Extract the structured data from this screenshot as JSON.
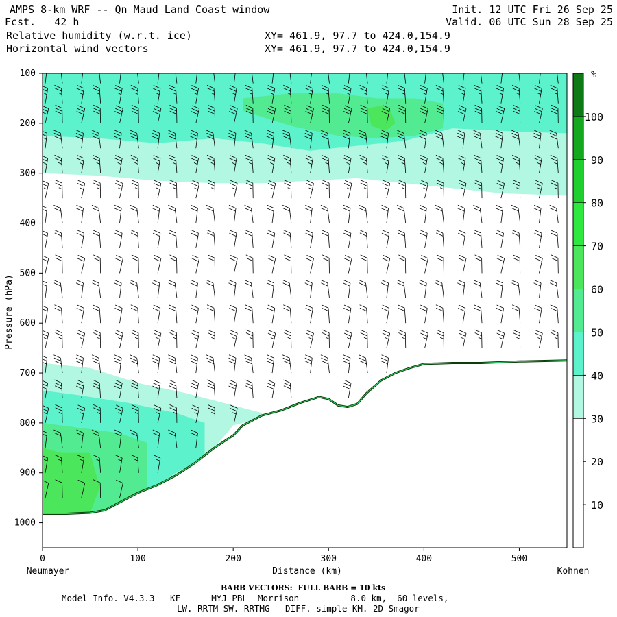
{
  "header": {
    "title": "AMPS 8-km WRF -- Qn Maud Land Coast window",
    "forecast": "Fcst.   42 h",
    "init": "Init. 12 UTC Fri 26 Sep 25",
    "valid": "Valid. 06 UTC Sun 28 Sep 25",
    "field1": "Relative humidity (w.r.t. ice)",
    "field2": "Horizontal wind vectors",
    "xy1": "XY= 461.9, 97.7 to 424.0,154.9",
    "xy2": "XY= 461.9, 97.7 to 424.0,154.9"
  },
  "footer": {
    "barb_note": "BARB VECTORS:  FULL BARB = 10 kts",
    "model_line1": "Model Info. V4.3.3   KF      MYJ PBL  Morrison          8.0 km,  60 levels,",
    "model_line2": "LW. RRTM SW. RRTMG   DIFF. simple KM. 2D Smagor"
  },
  "chart_data": {
    "type": "heatmap",
    "title": "Relative humidity (w.r.t. ice) cross-section with horizontal wind barbs",
    "xlabel": "Distance (km)",
    "ylabel": "Pressure (hPa)",
    "xlim": [
      0,
      550
    ],
    "ylim": [
      1050,
      100
    ],
    "x_ticks": [
      0,
      100,
      200,
      300,
      400,
      500
    ],
    "y_ticks": [
      100,
      200,
      300,
      400,
      500,
      600,
      700,
      800,
      900,
      1000
    ],
    "x_start_label": "Neumayer",
    "x_end_label": "Kohnen",
    "colorbar": {
      "unit": "%",
      "ticks": [
        10,
        20,
        30,
        40,
        50,
        60,
        70,
        80,
        90,
        100
      ],
      "levels": [
        0,
        30,
        40,
        50,
        60,
        70,
        80,
        90,
        100,
        110
      ],
      "colors": [
        "#ffffff",
        "#b2f7e2",
        "#5cf2cc",
        "#53eb92",
        "#4be65c",
        "#2ee840",
        "#1fcf2e",
        "#14a81e",
        "#0e7a16",
        "#4a6e14"
      ]
    },
    "terrain": {
      "distance_km": [
        0,
        25,
        50,
        65,
        80,
        100,
        120,
        140,
        160,
        180,
        200,
        210,
        230,
        250,
        270,
        290,
        300,
        310,
        320,
        330,
        340,
        355,
        370,
        385,
        400,
        430,
        460,
        500,
        550
      ],
      "pressure_hpa": [
        982,
        982,
        980,
        975,
        960,
        940,
        925,
        905,
        880,
        850,
        825,
        805,
        785,
        775,
        760,
        748,
        752,
        765,
        768,
        762,
        740,
        715,
        700,
        690,
        682,
        680,
        680,
        677,
        675
      ]
    },
    "rh_regions": [
      {
        "level": 30,
        "x": [
          0,
          60,
          120,
          180,
          230,
          280,
          330,
          380,
          430,
          480,
          550,
          550,
          480,
          430,
          380,
          330,
          280,
          230,
          180,
          120,
          60,
          0
        ],
        "p": [
          100,
          100,
          100,
          100,
          100,
          100,
          100,
          100,
          100,
          100,
          100,
          345,
          340,
          330,
          320,
          310,
          315,
          320,
          320,
          315,
          305,
          300
        ]
      },
      {
        "level": 40,
        "x": [
          0,
          60,
          120,
          180,
          230,
          280,
          330,
          380,
          430,
          480,
          550,
          550,
          480,
          430,
          380,
          330,
          280,
          230,
          180,
          120,
          60,
          0
        ],
        "p": [
          100,
          100,
          100,
          100,
          100,
          100,
          100,
          100,
          100,
          100,
          100,
          220,
          215,
          210,
          235,
          245,
          255,
          240,
          230,
          240,
          230,
          225
        ]
      },
      {
        "level": 50,
        "x": [
          210,
          260,
          310,
          350,
          390,
          420,
          420,
          390,
          350,
          310,
          260,
          210
        ],
        "p": [
          150,
          140,
          140,
          150,
          150,
          160,
          210,
          225,
          230,
          225,
          205,
          175
        ]
      },
      {
        "level": 60,
        "x": [
          340,
          355,
          365,
          370,
          360,
          345
        ],
        "p": [
          170,
          165,
          175,
          200,
          215,
          205
        ]
      },
      {
        "level": 30,
        "x": [
          0,
          50,
          100,
          150,
          190,
          230,
          230,
          200,
          180,
          160,
          140,
          120,
          100,
          80,
          65,
          50,
          25,
          0
        ],
        "p": [
          680,
          690,
          720,
          740,
          760,
          780,
          790,
          805,
          850,
          880,
          905,
          925,
          940,
          960,
          975,
          980,
          982,
          982
        ]
      },
      {
        "level": 40,
        "x": [
          0,
          40,
          90,
          140,
          170,
          170,
          140,
          120,
          100,
          80,
          65,
          50,
          25,
          0
        ],
        "p": [
          735,
          745,
          760,
          780,
          800,
          870,
          900,
          925,
          940,
          960,
          975,
          980,
          982,
          982
        ]
      },
      {
        "level": 50,
        "x": [
          0,
          40,
          80,
          110,
          110,
          80,
          65,
          50,
          25,
          0
        ],
        "p": [
          800,
          810,
          820,
          840,
          950,
          960,
          975,
          980,
          982,
          982
        ]
      },
      {
        "level": 60,
        "x": [
          0,
          20,
          50,
          60,
          50,
          25,
          0
        ],
        "p": [
          850,
          860,
          860,
          930,
          980,
          982,
          982
        ]
      }
    ],
    "wind": {
      "barb_unit_kts": 10,
      "columns_x_km": [
        0,
        18,
        38,
        58,
        78,
        98,
        118,
        138,
        158,
        178,
        198,
        218,
        238,
        258,
        278,
        298,
        318,
        338,
        358,
        378,
        398,
        418,
        438,
        458,
        478,
        498,
        518,
        538
      ],
      "levels_hpa": [
        120,
        160,
        200,
        250,
        300,
        350,
        400,
        450,
        500,
        550,
        600,
        650,
        700,
        750,
        800,
        850,
        900,
        950
      ],
      "speed_kts_by_level": [
        20,
        25,
        30,
        30,
        25,
        25,
        20,
        20,
        20,
        20,
        20,
        25,
        30,
        30,
        25,
        20,
        15,
        10
      ],
      "direction": "easterly"
    }
  }
}
